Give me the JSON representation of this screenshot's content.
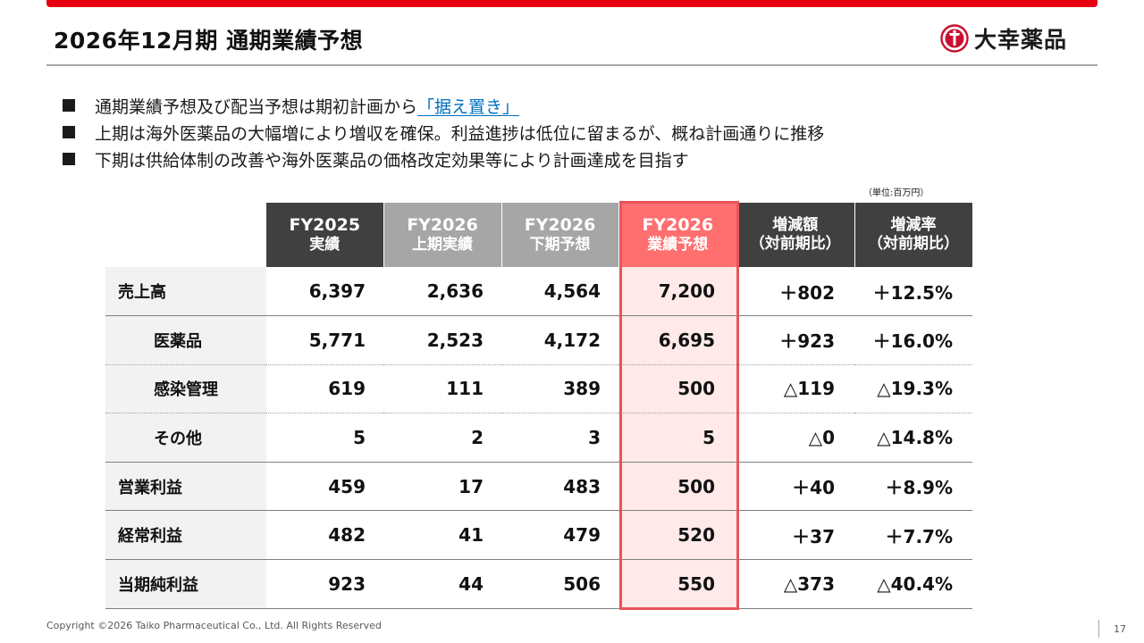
{
  "header": {
    "title": "2026年12月期 通期業績予想",
    "logo_text": "大幸薬品",
    "logo_icon": "taiko-seal-logo",
    "accent_color": "#e60012"
  },
  "bullets": [
    {
      "text": "通期業績予想及び配当予想は期初計画から",
      "highlight": "「据え置き」"
    },
    {
      "text": "上期は海外医薬品の大幅増により増収を確保。利益進捗は低位に留まるが、概ね計画通りに推移"
    },
    {
      "text": "下期は供給体制の改善や海外医薬品の価格改定効果等により計画達成を目指す"
    }
  ],
  "unit_note": "（単位:百万円）",
  "table": {
    "headers": [
      {
        "line1": "FY2025",
        "line2": "実績"
      },
      {
        "line1": "FY2026",
        "line2": "上期実績"
      },
      {
        "line1": "FY2026",
        "line2": "下期予想"
      },
      {
        "line1": "FY2026",
        "line2": "業績予想"
      },
      {
        "line1": "増減額",
        "line2": "（対前期比）"
      },
      {
        "line1": "増減率",
        "line2": "（対前期比）"
      }
    ],
    "rows": [
      {
        "label": "売上高",
        "values": [
          "6,397",
          "2,636",
          "4,564",
          "7,200",
          "＋802",
          "＋12.5%"
        ]
      },
      {
        "label": "医薬品",
        "values": [
          "5,771",
          "2,523",
          "4,172",
          "6,695",
          "＋923",
          "＋16.0%"
        ]
      },
      {
        "label": "感染管理",
        "values": [
          "619",
          "111",
          "389",
          "500",
          "△119",
          "△19.3%"
        ]
      },
      {
        "label": "その他",
        "values": [
          "5",
          "2",
          "3",
          "5",
          "△0",
          "△14.8%"
        ]
      },
      {
        "label": "営業利益",
        "values": [
          "459",
          "17",
          "483",
          "500",
          "＋40",
          "＋8.9%"
        ]
      },
      {
        "label": "経常利益",
        "values": [
          "482",
          "41",
          "479",
          "520",
          "＋37",
          "＋7.7%"
        ]
      },
      {
        "label": "当期純利益",
        "values": [
          "923",
          "44",
          "506",
          "550",
          "△373",
          "△40.4%"
        ]
      }
    ]
  },
  "footer": {
    "copyright": "Copyright ©2026   Taiko Pharmaceutical Co., Ltd. All Rights Reserved",
    "page_number": "17"
  }
}
